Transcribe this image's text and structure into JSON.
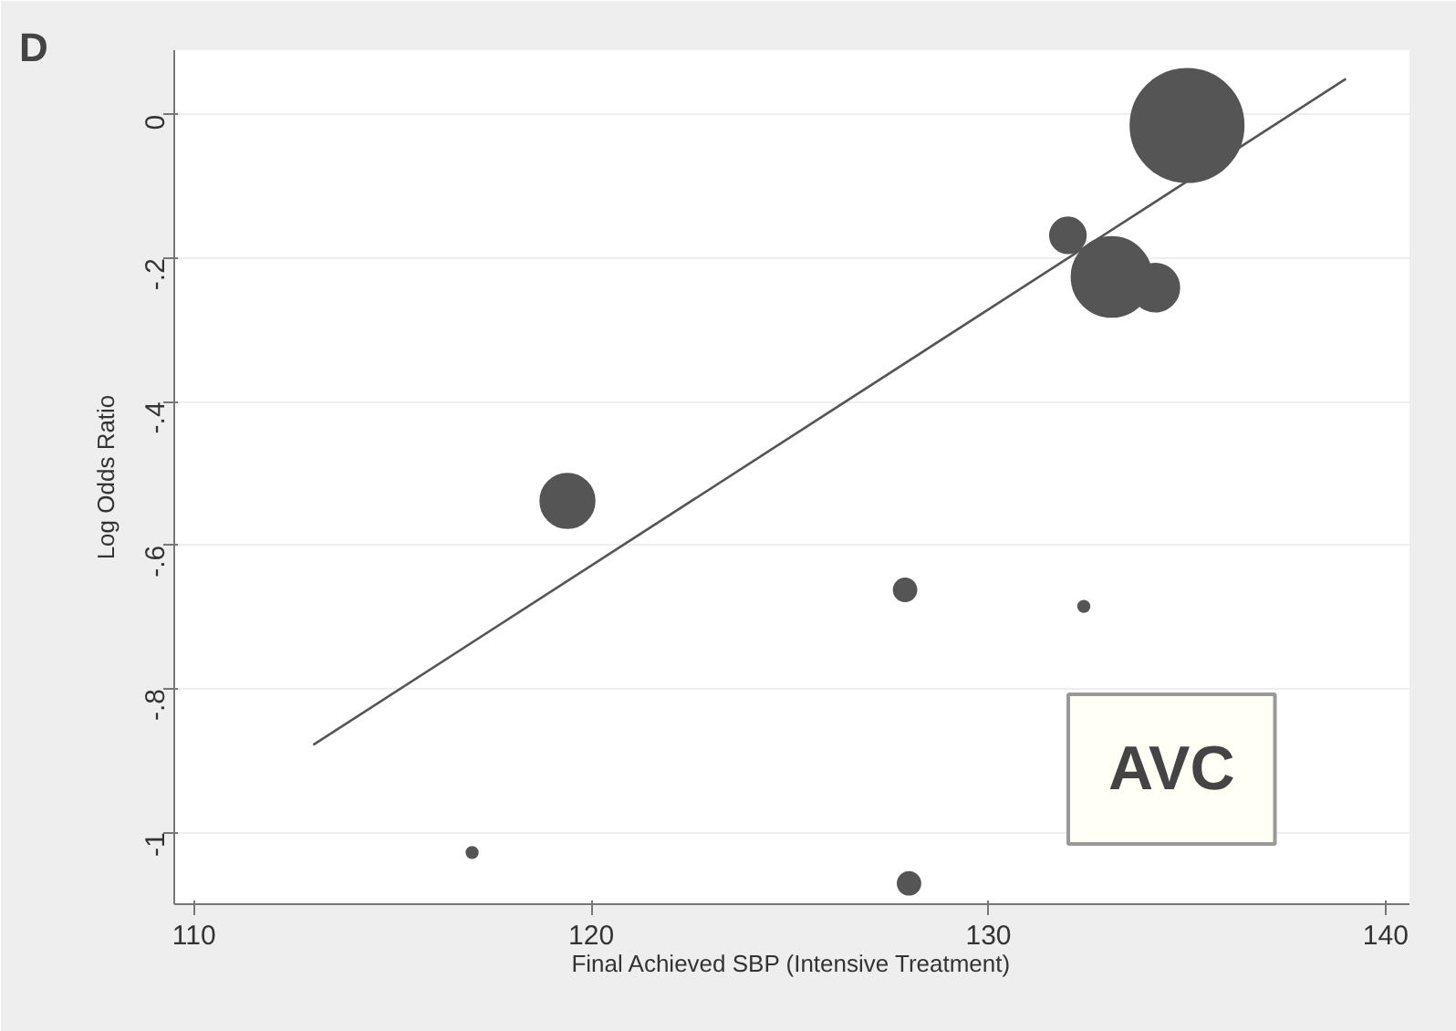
{
  "chart_data": {
    "type": "bubble",
    "title": "D",
    "xlabel": "Final Achieved SBP (Intensive Treatment)",
    "ylabel": "Log Odds Ratio",
    "xlim": [
      109.5,
      140.6
    ],
    "xticks": [
      110,
      120,
      130,
      140
    ],
    "ylim": [
      -1.1,
      0.09
    ],
    "yticks": [
      0,
      {
        "value": -0.2,
        "label": "-.2"
      },
      {
        "value": -0.4,
        "label": "-.4"
      },
      {
        "value": -0.6,
        "label": "-.6"
      },
      {
        "value": -0.8,
        "label": "-.8"
      },
      {
        "value": -1,
        "label": "-1"
      }
    ],
    "grid": "y",
    "annotations": [
      "AVC"
    ],
    "series": [
      {
        "color": "#555555",
        "x": [
          135.0,
          132.0,
          133.1,
          134.2,
          119.4,
          127.9,
          132.4,
          117.0,
          128.0
        ],
        "values": [
          -0.015,
          -0.168,
          -0.226,
          -0.241,
          -0.538,
          -0.662,
          -0.685,
          -1.028,
          -1.071
        ],
        "sizes": [
          1,
          0.1,
          0.5,
          0.18,
          0.23,
          0.04,
          0.01,
          0.01,
          0.04
        ]
      },
      {
        "type": "line",
        "color": "#555555",
        "x": [
          113.0,
          139.0
        ],
        "values": [
          -0.878,
          0.05
        ]
      }
    ]
  }
}
